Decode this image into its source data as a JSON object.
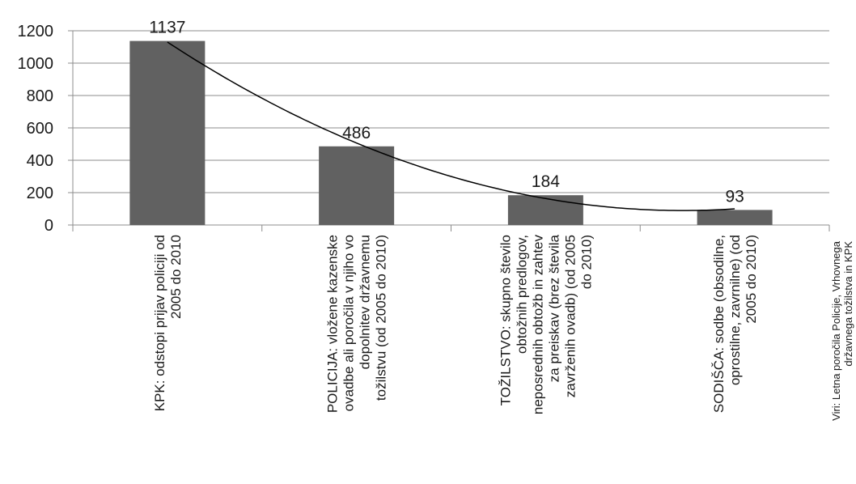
{
  "chart_data": {
    "type": "bar",
    "categories": [
      [
        "KPK: odstopi prijav policiji od",
        "2005 do 2010"
      ],
      [
        "POLICIJA: vložene kazenske",
        "ovadbe ali poročila v njiho vo",
        "dopolnitev državnemu",
        "tožilstvu (od 2005 do 2010)"
      ],
      [
        "TOŽILSTVO: skupno število",
        "obtožnih predlogov,",
        "neposrednih obtožb in zahtev",
        "za preiskav (brez števila",
        "zavrženih ovadb) (od 2005",
        "do 2010)"
      ],
      [
        "SODIŠČA: sodbe (obsodilne,",
        "oprostilne, zavrnilne) (od",
        "2005 do 2010)"
      ]
    ],
    "values": [
      1137,
      486,
      184,
      93
    ],
    "data_labels": [
      "1137",
      "486",
      "184",
      "93"
    ],
    "ylim": [
      0,
      1200
    ],
    "yticks": [
      "0",
      "200",
      "400",
      "600",
      "800",
      "1000",
      "1200"
    ],
    "grid": true,
    "trendline": "polynomial",
    "bar_color": "#616161",
    "source_lines": [
      "Viri: Letna poročila Policije, Vrhovnega",
      "državnega tožilstva in KPK"
    ]
  }
}
